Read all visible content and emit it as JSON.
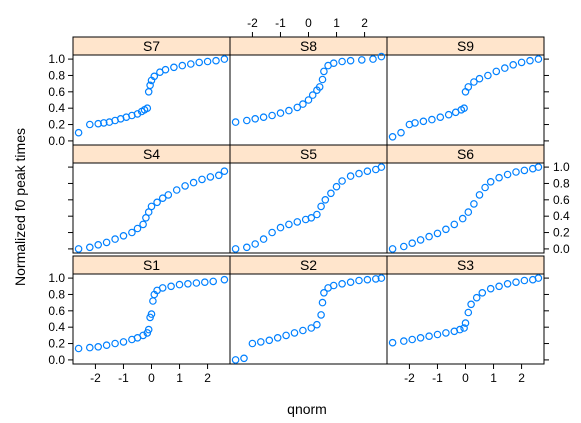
{
  "chart_data": {
    "type": "scatter",
    "layout": "trellis-3x3",
    "xlabel": "qnorm",
    "ylabel": "Normalized f0 peak times",
    "xlim": [
      -2.8,
      2.8
    ],
    "ylim": [
      -0.05,
      1.05
    ],
    "x_ticks": [
      -2,
      -1,
      0,
      1,
      2
    ],
    "x_tick_labels": [
      "-2",
      "-1",
      "0",
      "1",
      "2"
    ],
    "y_ticks": [
      0.0,
      0.2,
      0.4,
      0.6,
      0.8,
      1.0
    ],
    "y_tick_labels": [
      "0.0",
      "0.2",
      "0.4",
      "0.6",
      "0.8",
      "1.0"
    ],
    "grid": false,
    "marker": "open-circle",
    "point_color": "#0080ff",
    "strip_color": "#ffe5cc",
    "panels": [
      {
        "name": "S7",
        "points": [
          [
            -2.6,
            0.1
          ],
          [
            -2.2,
            0.2
          ],
          [
            -1.9,
            0.21
          ],
          [
            -1.7,
            0.22
          ],
          [
            -1.5,
            0.23
          ],
          [
            -1.3,
            0.25
          ],
          [
            -1.1,
            0.27
          ],
          [
            -0.9,
            0.29
          ],
          [
            -0.7,
            0.31
          ],
          [
            -0.5,
            0.33
          ],
          [
            -0.35,
            0.36
          ],
          [
            -0.25,
            0.38
          ],
          [
            -0.15,
            0.4
          ],
          [
            -0.1,
            0.6
          ],
          [
            -0.05,
            0.68
          ],
          [
            0.0,
            0.74
          ],
          [
            0.1,
            0.79
          ],
          [
            0.3,
            0.84
          ],
          [
            0.5,
            0.87
          ],
          [
            0.8,
            0.9
          ],
          [
            1.1,
            0.92
          ],
          [
            1.4,
            0.94
          ],
          [
            1.7,
            0.96
          ],
          [
            2.0,
            0.97
          ],
          [
            2.3,
            0.98
          ],
          [
            2.6,
            1.0
          ]
        ]
      },
      {
        "name": "S8",
        "points": [
          [
            -2.6,
            0.23
          ],
          [
            -2.2,
            0.25
          ],
          [
            -1.9,
            0.27
          ],
          [
            -1.6,
            0.29
          ],
          [
            -1.3,
            0.31
          ],
          [
            -1.0,
            0.34
          ],
          [
            -0.7,
            0.37
          ],
          [
            -0.4,
            0.41
          ],
          [
            -0.2,
            0.45
          ],
          [
            0.0,
            0.5
          ],
          [
            0.15,
            0.56
          ],
          [
            0.3,
            0.62
          ],
          [
            0.4,
            0.66
          ],
          [
            0.5,
            0.75
          ],
          [
            0.55,
            0.85
          ],
          [
            0.7,
            0.92
          ],
          [
            0.9,
            0.95
          ],
          [
            1.2,
            0.97
          ],
          [
            1.5,
            0.98
          ],
          [
            1.9,
            0.99
          ],
          [
            2.3,
            1.0
          ],
          [
            2.6,
            1.03
          ]
        ]
      },
      {
        "name": "S9",
        "points": [
          [
            -2.6,
            0.05
          ],
          [
            -2.3,
            0.1
          ],
          [
            -2.0,
            0.2
          ],
          [
            -1.8,
            0.22
          ],
          [
            -1.5,
            0.24
          ],
          [
            -1.2,
            0.26
          ],
          [
            -0.9,
            0.29
          ],
          [
            -0.6,
            0.32
          ],
          [
            -0.35,
            0.35
          ],
          [
            -0.15,
            0.38
          ],
          [
            -0.05,
            0.4
          ],
          [
            0.0,
            0.6
          ],
          [
            0.1,
            0.66
          ],
          [
            0.3,
            0.72
          ],
          [
            0.5,
            0.76
          ],
          [
            0.8,
            0.8
          ],
          [
            1.1,
            0.85
          ],
          [
            1.4,
            0.89
          ],
          [
            1.7,
            0.93
          ],
          [
            2.0,
            0.96
          ],
          [
            2.3,
            0.98
          ],
          [
            2.6,
            1.0
          ]
        ]
      },
      {
        "name": "S4",
        "points": [
          [
            -2.6,
            0.0
          ],
          [
            -2.2,
            0.02
          ],
          [
            -1.9,
            0.05
          ],
          [
            -1.6,
            0.08
          ],
          [
            -1.3,
            0.12
          ],
          [
            -1.0,
            0.16
          ],
          [
            -0.7,
            0.2
          ],
          [
            -0.5,
            0.25
          ],
          [
            -0.3,
            0.3
          ],
          [
            -0.2,
            0.38
          ],
          [
            -0.1,
            0.45
          ],
          [
            0.0,
            0.52
          ],
          [
            0.2,
            0.57
          ],
          [
            0.4,
            0.62
          ],
          [
            0.6,
            0.66
          ],
          [
            0.9,
            0.72
          ],
          [
            1.2,
            0.77
          ],
          [
            1.5,
            0.81
          ],
          [
            1.8,
            0.85
          ],
          [
            2.1,
            0.88
          ],
          [
            2.4,
            0.9
          ],
          [
            2.6,
            0.95
          ]
        ]
      },
      {
        "name": "S5",
        "points": [
          [
            -2.6,
            0.0
          ],
          [
            -2.2,
            0.02
          ],
          [
            -1.9,
            0.06
          ],
          [
            -1.6,
            0.12
          ],
          [
            -1.3,
            0.2
          ],
          [
            -1.0,
            0.26
          ],
          [
            -0.7,
            0.3
          ],
          [
            -0.4,
            0.33
          ],
          [
            -0.1,
            0.36
          ],
          [
            0.1,
            0.38
          ],
          [
            0.3,
            0.42
          ],
          [
            0.45,
            0.52
          ],
          [
            0.6,
            0.6
          ],
          [
            0.8,
            0.68
          ],
          [
            1.0,
            0.76
          ],
          [
            1.2,
            0.83
          ],
          [
            1.5,
            0.89
          ],
          [
            1.8,
            0.92
          ],
          [
            2.1,
            0.95
          ],
          [
            2.4,
            0.97
          ],
          [
            2.6,
            1.0
          ]
        ]
      },
      {
        "name": "S6",
        "points": [
          [
            -2.6,
            0.0
          ],
          [
            -2.2,
            0.03
          ],
          [
            -1.9,
            0.07
          ],
          [
            -1.6,
            0.11
          ],
          [
            -1.3,
            0.15
          ],
          [
            -1.0,
            0.19
          ],
          [
            -0.7,
            0.24
          ],
          [
            -0.4,
            0.3
          ],
          [
            -0.1,
            0.37
          ],
          [
            0.1,
            0.45
          ],
          [
            0.3,
            0.55
          ],
          [
            0.5,
            0.66
          ],
          [
            0.7,
            0.75
          ],
          [
            0.9,
            0.82
          ],
          [
            1.2,
            0.87
          ],
          [
            1.5,
            0.91
          ],
          [
            1.8,
            0.94
          ],
          [
            2.1,
            0.96
          ],
          [
            2.4,
            0.98
          ],
          [
            2.6,
            1.0
          ]
        ]
      },
      {
        "name": "S1",
        "points": [
          [
            -2.6,
            0.14
          ],
          [
            -2.2,
            0.15
          ],
          [
            -1.9,
            0.16
          ],
          [
            -1.6,
            0.18
          ],
          [
            -1.3,
            0.2
          ],
          [
            -1.0,
            0.22
          ],
          [
            -0.7,
            0.25
          ],
          [
            -0.5,
            0.27
          ],
          [
            -0.3,
            0.3
          ],
          [
            -0.15,
            0.33
          ],
          [
            -0.1,
            0.37
          ],
          [
            -0.05,
            0.52
          ],
          [
            0.0,
            0.56
          ],
          [
            0.05,
            0.72
          ],
          [
            0.1,
            0.8
          ],
          [
            0.2,
            0.85
          ],
          [
            0.4,
            0.88
          ],
          [
            0.7,
            0.9
          ],
          [
            1.0,
            0.92
          ],
          [
            1.3,
            0.93
          ],
          [
            1.6,
            0.94
          ],
          [
            1.9,
            0.95
          ],
          [
            2.2,
            0.96
          ],
          [
            2.6,
            0.98
          ]
        ]
      },
      {
        "name": "S2",
        "points": [
          [
            -2.6,
            0.0
          ],
          [
            -2.3,
            0.02
          ],
          [
            -2.0,
            0.2
          ],
          [
            -1.7,
            0.22
          ],
          [
            -1.4,
            0.24
          ],
          [
            -1.1,
            0.27
          ],
          [
            -0.8,
            0.3
          ],
          [
            -0.5,
            0.33
          ],
          [
            -0.2,
            0.36
          ],
          [
            0.1,
            0.39
          ],
          [
            0.3,
            0.43
          ],
          [
            0.45,
            0.55
          ],
          [
            0.5,
            0.7
          ],
          [
            0.55,
            0.82
          ],
          [
            0.7,
            0.88
          ],
          [
            0.9,
            0.91
          ],
          [
            1.2,
            0.93
          ],
          [
            1.5,
            0.95
          ],
          [
            1.8,
            0.97
          ],
          [
            2.1,
            0.98
          ],
          [
            2.4,
            0.99
          ],
          [
            2.6,
            1.0
          ]
        ]
      },
      {
        "name": "S3",
        "points": [
          [
            -2.6,
            0.21
          ],
          [
            -2.2,
            0.23
          ],
          [
            -1.9,
            0.25
          ],
          [
            -1.6,
            0.27
          ],
          [
            -1.3,
            0.29
          ],
          [
            -1.0,
            0.31
          ],
          [
            -0.7,
            0.33
          ],
          [
            -0.4,
            0.35
          ],
          [
            -0.2,
            0.37
          ],
          [
            -0.05,
            0.39
          ],
          [
            0.0,
            0.45
          ],
          [
            0.1,
            0.58
          ],
          [
            0.2,
            0.68
          ],
          [
            0.4,
            0.76
          ],
          [
            0.6,
            0.82
          ],
          [
            0.9,
            0.87
          ],
          [
            1.2,
            0.9
          ],
          [
            1.5,
            0.93
          ],
          [
            1.8,
            0.95
          ],
          [
            2.1,
            0.97
          ],
          [
            2.4,
            0.98
          ],
          [
            2.6,
            1.0
          ]
        ]
      }
    ]
  }
}
